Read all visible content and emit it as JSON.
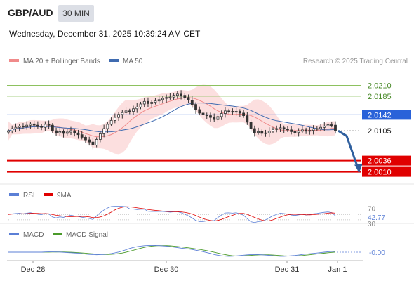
{
  "header": {
    "pair": "GBP/AUD",
    "timeframe": "30 MIN",
    "datetime": "Wednesday, December 31, 2025 10:39:24 AM CET"
  },
  "legend": {
    "ma20_bb": "MA 20 + Bollinger Bands",
    "ma50": "MA 50",
    "research": "Research © 2025 Trading Central"
  },
  "colors": {
    "resistance_green": "#8dc15f",
    "pivot_blue": "#2962d9",
    "support_red": "#e00000",
    "band_fill": "#fbd7d7",
    "ma20": "#f08a8a",
    "ma50": "#3f6bb0",
    "candle": "#333333",
    "arrow": "#2f5f9e",
    "rsi": "#5b7fd6",
    "rsi_ma": "#e00000",
    "macd": "#5b7fd6",
    "macd_signal": "#4a9a2a"
  },
  "chart_data": [
    {
      "type": "line",
      "title": "GBP/AUD 30 MIN",
      "y_range": [
        1.9985,
        2.0245
      ],
      "x_tick_labels": [
        "Dec 28",
        "Dec 30",
        "Dec 31",
        "Jan 1"
      ],
      "levels": [
        {
          "label": "2.0210",
          "value": 2.021,
          "kind": "resistance"
        },
        {
          "label": "2.0185",
          "value": 2.0185,
          "kind": "resistance"
        },
        {
          "label": "2.0142",
          "value": 2.0142,
          "kind": "pivot"
        },
        {
          "label": "2.0105",
          "value": 2.0105,
          "kind": "last"
        },
        {
          "label": "2.0036",
          "value": 2.0036,
          "kind": "support"
        },
        {
          "label": "2.0010",
          "value": 2.001,
          "kind": "support"
        }
      ],
      "close_series": [
        2.0105,
        2.011,
        2.0113,
        2.0116,
        2.0114,
        2.0118,
        2.0121,
        2.0118,
        2.0115,
        2.0113,
        2.012,
        2.0118,
        2.0105,
        2.01,
        2.0103,
        2.0099,
        2.0102,
        2.0105,
        2.01,
        2.0096,
        2.009,
        2.0084,
        2.0079,
        2.0072,
        2.0085,
        2.0098,
        2.011,
        2.012,
        2.0129,
        2.0136,
        2.0143,
        2.0147,
        2.0151,
        2.015,
        2.0156,
        2.016,
        2.0167,
        2.0173,
        2.0168,
        2.0171,
        2.0174,
        2.0177,
        2.018,
        2.0182,
        2.0183,
        2.0187,
        2.019,
        2.0187,
        2.0182,
        2.0176,
        2.0166,
        2.0154,
        2.0146,
        2.0142,
        2.014,
        2.0136,
        2.0131,
        2.0138,
        2.0145,
        2.0151,
        2.015,
        2.0148,
        2.015,
        2.0146,
        2.014,
        2.0125,
        2.011,
        2.0101,
        2.0103,
        2.0099,
        2.01,
        2.0104,
        2.0108,
        2.011,
        2.0112,
        2.0109,
        2.0107,
        2.0103,
        2.0101,
        2.0104,
        2.0107,
        2.0104,
        2.0106,
        2.0109,
        2.011,
        2.0113,
        2.0116,
        2.0119,
        2.0118,
        2.0105
      ],
      "forecast": [
        2.0105,
        2.0093,
        2.001
      ],
      "legend": [
        "MA 20 + Bollinger Bands",
        "MA 50"
      ]
    },
    {
      "type": "line",
      "title": "RSI",
      "legend": [
        "RSI",
        "9MA"
      ],
      "y_tick_labels": [
        "70",
        "42.77",
        "30"
      ],
      "last_value": "42.77"
    },
    {
      "type": "line",
      "title": "MACD",
      "legend": [
        "MACD",
        "MACD Signal"
      ],
      "last_value": "-0.00"
    }
  ]
}
